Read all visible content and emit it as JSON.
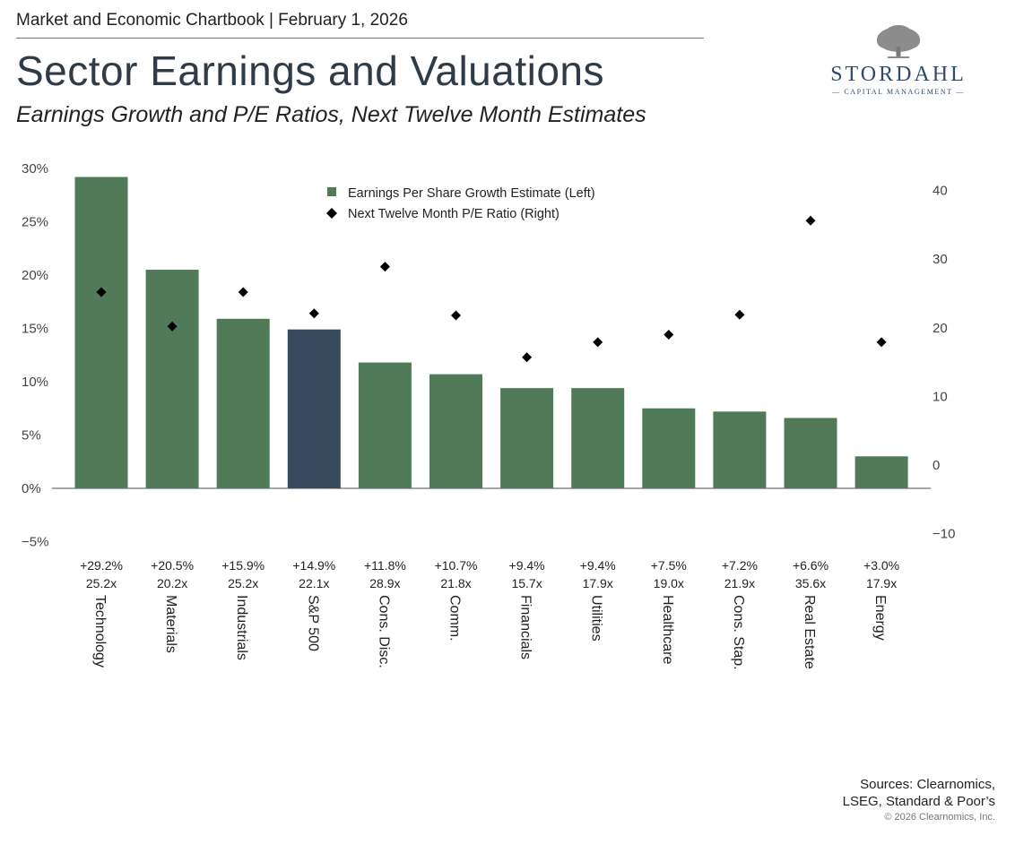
{
  "header": {
    "top_line": "Market and Economic Chartbook | February 1, 2026",
    "title": "Sector Earnings and Valuations",
    "subtitle": "Earnings Growth and P/E Ratios, Next Twelve Month Estimates"
  },
  "logo": {
    "name": "STORDAHL",
    "tagline": "— CAPITAL MANAGEMENT —"
  },
  "footer": {
    "sources_line1": "Sources: Clearnomics,",
    "sources_line2": "LSEG, Standard & Poor’s",
    "copyright": "© 2026 Clearnomics, Inc."
  },
  "colors": {
    "sector_bar": "#517b58",
    "benchmark_bar": "#384b5e",
    "marker": "#000000",
    "axis": "#888888"
  },
  "chart_data": {
    "type": "bar",
    "left_axis": {
      "ylim": [
        -5,
        30
      ],
      "ticks": [
        -5,
        0,
        5,
        10,
        15,
        20,
        25,
        30
      ],
      "tick_labels": [
        "−5%",
        "0%",
        "5%",
        "10%",
        "15%",
        "20%",
        "25%",
        "30%"
      ]
    },
    "right_axis": {
      "ylim": [
        -10,
        43.3
      ],
      "ticks": [
        -10,
        0,
        10,
        20,
        30,
        40
      ],
      "tick_labels": [
        "−10",
        "0",
        "10",
        "20",
        "30",
        "40"
      ]
    },
    "legend": {
      "position": "top-center",
      "items": [
        {
          "label": "Earnings Per Share Growth Estimate (Left)",
          "symbol": "square"
        },
        {
          "label": "Next Twelve Month P/E Ratio (Right)",
          "symbol": "diamond"
        }
      ]
    },
    "categories": [
      "Technology",
      "Materials",
      "Industrials",
      "S&P 500",
      "Cons. Disc.",
      "Comm.",
      "Financials",
      "Utilities",
      "Healthcare",
      "Cons. Stap.",
      "Real Estate",
      "Energy"
    ],
    "highlight_category": "S&P 500",
    "series": [
      {
        "name": "Earnings Per Share Growth Estimate (Left)",
        "axis": "left",
        "kind": "bar",
        "values": [
          29.2,
          20.5,
          15.9,
          14.9,
          11.8,
          10.7,
          9.4,
          9.4,
          7.5,
          7.2,
          6.6,
          3.0
        ],
        "labels": [
          "+29.2%",
          "+20.5%",
          "+15.9%",
          "+14.9%",
          "+11.8%",
          "+10.7%",
          "+9.4%",
          "+9.4%",
          "+7.5%",
          "+7.2%",
          "+6.6%",
          "+3.0%"
        ]
      },
      {
        "name": "Next Twelve Month P/E Ratio (Right)",
        "axis": "right",
        "kind": "scatter",
        "values": [
          25.2,
          20.2,
          25.2,
          22.1,
          28.9,
          21.8,
          15.7,
          17.9,
          19.0,
          21.9,
          35.6,
          17.9
        ],
        "labels": [
          "25.2x",
          "20.2x",
          "25.2x",
          "22.1x",
          "28.9x",
          "21.8x",
          "15.7x",
          "17.9x",
          "19.0x",
          "21.9x",
          "35.6x",
          "17.9x"
        ]
      }
    ]
  }
}
